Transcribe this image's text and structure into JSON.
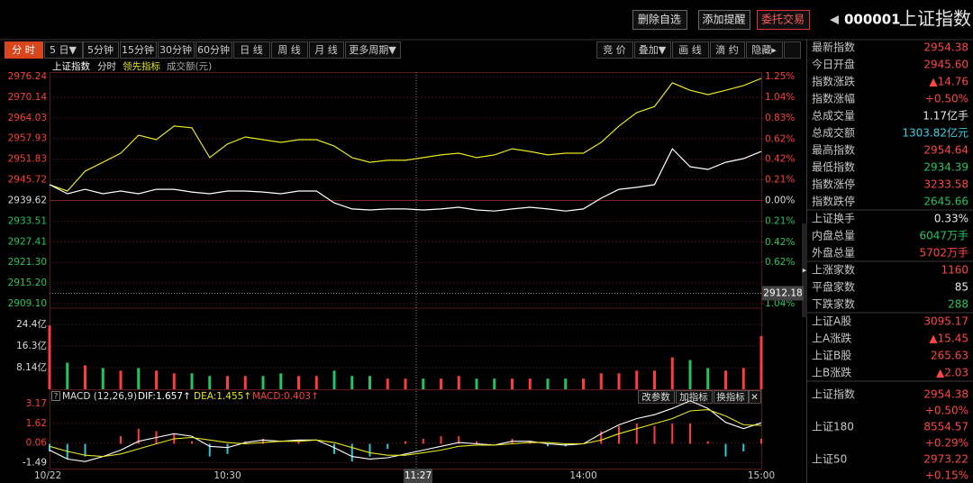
{
  "toolbar": {
    "buttons": [
      "删除自选",
      "添加提醒",
      "委托交易"
    ],
    "arrow": "◀",
    "code": "000001",
    "name": "上证指数"
  },
  "periods": [
    "分 时",
    "5 日▼",
    "5分钟",
    "15分钟",
    "30分钟",
    "60分钟",
    "日 线",
    "周 线",
    "月 线",
    "更多周期▼"
  ],
  "tools": [
    "竞 价",
    "叠加▼",
    "画 线",
    "滴 约",
    "隐藏▸"
  ],
  "chart_data": [
    {
      "type": "line",
      "subtitle": "分时",
      "prev_close": 2939.62,
      "categories": [
        "10/22",
        null,
        null,
        null,
        null,
        null,
        null,
        null,
        null,
        null,
        "10:30",
        null,
        null,
        null,
        null,
        null,
        null,
        null,
        null,
        null,
        null,
        null,
        null,
        null,
        null,
        null,
        null,
        null,
        null,
        null,
        "14:00",
        null,
        null,
        null,
        null,
        null,
        null,
        null,
        null,
        null,
        "15:00"
      ],
      "series": [
        {
          "name": "上证指数",
          "color": "#ffffff",
          "values": [
            2944.3,
            2941.6,
            2942.9,
            2941.6,
            2942.4,
            2941.6,
            2942.9,
            2942.9,
            2942.1,
            2941.6,
            2942.4,
            2942.4,
            2942.1,
            2941.6,
            2942.4,
            2942.4,
            2938.9,
            2937.1,
            2936.8,
            2937.1,
            2937.1,
            2936.8,
            2937.1,
            2937.6,
            2936.8,
            2936.5,
            2937.1,
            2937.6,
            2937.1,
            2936.5,
            2937.1,
            2940.3,
            2942.9,
            2943.5,
            2944.3,
            2954.9,
            2949.6,
            2948.8,
            2950.9,
            2952.0,
            2954.1
          ]
        },
        {
          "name": "领先指标",
          "color": "#e6e61e",
          "values": [
            2944.3,
            2942.4,
            2948.3,
            2950.9,
            2953.6,
            2958.9,
            2957.6,
            2961.6,
            2961.1,
            2952.3,
            2956.3,
            2958.4,
            2957.6,
            2956.8,
            2957.6,
            2957.6,
            2955.7,
            2952.3,
            2950.9,
            2951.5,
            2951.5,
            2952.3,
            2953.1,
            2953.6,
            2952.3,
            2953.1,
            2954.9,
            2954.1,
            2953.1,
            2953.6,
            2953.6,
            2956.8,
            2961.6,
            2965.6,
            2967.4,
            2974.4,
            2972.2,
            2970.9,
            2972.2,
            2973.6,
            2975.7
          ]
        }
      ],
      "ylim": [
        2909.1,
        2976.24
      ],
      "yticks": [
        2976.24,
        2970.14,
        2964.03,
        2957.93,
        2951.83,
        2945.72,
        2939.62,
        2933.51,
        2927.41,
        {
          "value": 2921.3,
          "label": "2921.30"
        },
        {
          "value": 2915.2,
          "label": "2915.20"
        },
        {
          "value": 2909.1,
          "label": "2909.10"
        }
      ],
      "y2lim": [
        -1.04,
        1.25
      ],
      "y2ticks": [
        {
          "value": 1.25,
          "label": "1.25%"
        },
        {
          "value": 1.04,
          "label": "1.04%"
        },
        {
          "value": 0.83,
          "label": "0.83%"
        },
        {
          "value": 0.62,
          "label": "0.62%"
        },
        {
          "value": 0.42,
          "label": "0.42%"
        },
        {
          "value": 0.21,
          "label": "0.21%"
        },
        {
          "value": 0,
          "label": "0.00%"
        },
        {
          "value": -0.21,
          "label": "0.21%"
        },
        {
          "value": -0.42,
          "label": "0.42%"
        },
        {
          "value": -0.62,
          "label": "0.62%"
        },
        {
          "value": -1.04,
          "label": "1.04%"
        }
      ],
      "crosshair": {
        "x": "11:27",
        "y": 2912.18
      }
    },
    {
      "type": "bar",
      "title": "成交额(元)",
      "up_color": "#ff3b3b",
      "down_color": "#22c55e",
      "values": [
        24.0,
        10,
        9,
        8,
        7,
        8,
        7,
        6,
        6,
        5,
        5,
        5,
        5,
        6,
        5,
        5,
        7,
        5,
        5,
        4,
        4,
        4,
        4,
        5,
        4,
        4,
        4,
        4,
        4,
        4,
        4,
        6,
        6,
        7,
        7,
        12,
        11,
        8,
        7,
        8,
        20
      ],
      "ylim": [
        0,
        24.4
      ],
      "yticks": [
        {
          "value": 24.4,
          "label": "24.4亿"
        },
        {
          "value": 16.3,
          "label": "16.3亿"
        },
        {
          "value": 8.14,
          "label": "8.14亿"
        }
      ]
    },
    {
      "type": "macd",
      "title": "MACD (12,26,9)",
      "help": "?",
      "label": "MACD:0.403↑",
      "up_color": "#ff3b3b",
      "down_color": "#2ec7d6",
      "values": [
        -0.6,
        -1.2,
        -1.0,
        0.0,
        0.6,
        1.2,
        1.0,
        0.8,
        0.2,
        -1.0,
        -0.8,
        0.2,
        0.4,
        0.0,
        0.2,
        0.0,
        -0.8,
        -1.4,
        -1.0,
        -0.4,
        0.2,
        0.4,
        0.6,
        0.6,
        0.2,
        0.0,
        0.4,
        0.2,
        -0.2,
        -0.2,
        0.0,
        1.0,
        1.4,
        1.6,
        1.4,
        1.6,
        1.6,
        0.2,
        -1.0,
        -0.6,
        0.4
      ],
      "series": [
        {
          "label": "DIF:1.657↑",
          "color": "#ffffff",
          "values": [
            -0.5,
            -1.2,
            -1.4,
            -1.0,
            -0.5,
            0.2,
            0.5,
            0.8,
            0.6,
            -0.2,
            -0.3,
            0.1,
            0.3,
            0.2,
            0.3,
            0.3,
            -0.3,
            -1.0,
            -1.2,
            -1.1,
            -0.8,
            -0.5,
            -0.2,
            0.1,
            0.0,
            -0.1,
            0.2,
            0.2,
            0.0,
            -0.1,
            0.0,
            0.8,
            1.5,
            2.0,
            2.3,
            2.8,
            3.4,
            2.8,
            1.7,
            1.2,
            1.66
          ]
        },
        {
          "label": "DEA:1.455↑",
          "color": "#e6e61e",
          "values": [
            -0.2,
            -0.6,
            -0.9,
            -1.0,
            -0.8,
            -0.4,
            0.0,
            0.4,
            0.5,
            0.3,
            0.1,
            0.0,
            0.1,
            0.2,
            0.2,
            0.3,
            0.1,
            -0.3,
            -0.7,
            -0.9,
            -0.9,
            -0.7,
            -0.5,
            -0.2,
            -0.1,
            -0.1,
            0.0,
            0.1,
            0.1,
            0.0,
            0.0,
            0.3,
            0.8,
            1.2,
            1.6,
            2.0,
            2.6,
            2.7,
            2.2,
            1.5,
            1.46
          ]
        }
      ],
      "ylim": [
        -2.1,
        3.6
      ],
      "yticks": [
        3.17,
        1.62,
        0.06,
        -1.49
      ],
      "buttons": [
        "改参数",
        "加指标",
        "换指标",
        "✕"
      ]
    }
  ],
  "quote": {
    "groups": [
      [
        {
          "label": "最新指数",
          "value": "2954.38",
          "color": "#ff4545"
        },
        {
          "label": "今日开盘",
          "value": "2945.60",
          "color": "#ff4545"
        },
        {
          "label": "指数涨跌",
          "value": "▲14.76",
          "color": "#ff4545"
        },
        {
          "label": "指数涨幅",
          "value": "+0.50%",
          "color": "#ff4545"
        },
        {
          "label": "总成交量",
          "value": "1.17亿手",
          "color": "#e8e8e8"
        },
        {
          "label": "总成交额",
          "value": "1303.82亿元",
          "color": "#2fd3e6"
        },
        {
          "label": "最高指数",
          "value": "2954.64",
          "color": "#ff4545"
        },
        {
          "label": "最低指数",
          "value": "2934.39",
          "color": "#22c55e"
        },
        {
          "label": "指数涨停",
          "value": "3233.58",
          "color": "#ff4545"
        },
        {
          "label": "指数跌停",
          "value": "2645.66",
          "color": "#22c55e"
        }
      ],
      [
        {
          "label": "上证换手",
          "value": "0.33%",
          "color": "#e8e8e8"
        },
        {
          "label": "内盘总量",
          "value": "6047万手",
          "color": "#22c55e"
        },
        {
          "label": "外盘总量",
          "value": "5702万手",
          "color": "#ff4545"
        }
      ],
      [
        {
          "label": "上涨家数",
          "value": "1160",
          "color": "#ff4545"
        },
        {
          "label": "平盘家数",
          "value": "85",
          "color": "#e8e8e8"
        },
        {
          "label": "下跌家数",
          "value": "288",
          "color": "#22c55e"
        }
      ],
      [
        {
          "label": "上证A股",
          "value": "3095.17",
          "color": "#ff4545"
        },
        {
          "label": "上A涨跌",
          "value": "▲15.45",
          "color": "#ff4545"
        },
        {
          "label": "上证B股",
          "value": "265.63",
          "color": "#ff4545"
        },
        {
          "label": "上B涨跌",
          "value": "▲2.03",
          "color": "#ff4545"
        }
      ]
    ],
    "indices": [
      {
        "label": "上证指数",
        "value": "2954.38",
        "change": "+0.50%",
        "color": "#ff4545"
      },
      {
        "label": "上证180",
        "value": "8554.57",
        "change": "+0.29%",
        "color": "#ff4545"
      },
      {
        "label": "上证50",
        "value": "2973.22",
        "change": "+0.15%",
        "color": "#ff4545"
      }
    ]
  }
}
